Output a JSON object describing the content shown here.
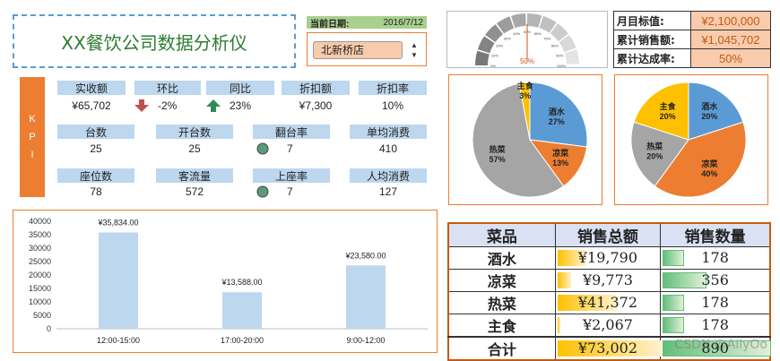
{
  "title": "XX餐饮公司数据分析仪",
  "date": {
    "label": "当前日期:",
    "value": "2016/7/12"
  },
  "store": {
    "selected": "北新桥店"
  },
  "gauge": {
    "value_label": "50%",
    "value": 0.5,
    "ticks": [
      "0%",
      "10%",
      "20%",
      "30%",
      "40%",
      "50%",
      "60%",
      "70%",
      "80%",
      "90%",
      "100%"
    ]
  },
  "targets": [
    {
      "label": "月目标值:",
      "value": "¥2,100,000"
    },
    {
      "label": "累计销售额:",
      "value": "¥1,045,702"
    },
    {
      "label": "累计达成率:",
      "value": "50%"
    }
  ],
  "kpi": {
    "side_label": [
      "K",
      "P",
      "I"
    ],
    "headers": {
      "revenue": "实收额",
      "mom": "环比",
      "yoy": "同比",
      "discount_amount": "折扣额",
      "discount_rate": "折扣率",
      "tables": "台数",
      "open_tables": "开台数",
      "turnover": "翻台率",
      "avg_per_table": "单均消费",
      "seats": "座位数",
      "customers": "客流量",
      "seat_rate": "上座率",
      "avg_per_person": "人均消费"
    },
    "values": {
      "revenue": "¥65,702",
      "mom": "-2%",
      "yoy": "23%",
      "discount_amount": "¥7,300",
      "discount_rate": "10%",
      "tables": "25",
      "open_tables": "25",
      "turnover": "7",
      "avg_per_table": "410",
      "seats": "78",
      "customers": "572",
      "seat_rate": "7",
      "avg_per_person": "127"
    },
    "colors": {
      "down_arrow": "#c0504d",
      "up_arrow": "#2e8b57",
      "circle": "#5b9a7a"
    }
  },
  "chart_data": [
    {
      "type": "bar",
      "categories": [
        "12:00-15:00",
        "17:00-20:00",
        "9:00-12:00"
      ],
      "values": [
        35834,
        13588,
        23580
      ],
      "data_labels": [
        "¥35,834.00",
        "¥13,588.00",
        "¥23,580.00"
      ],
      "ylim": [
        0,
        40000
      ],
      "yticks": [
        0,
        5000,
        10000,
        15000,
        20000,
        25000,
        30000,
        35000,
        40000
      ],
      "color": "#bdd7ee"
    },
    {
      "type": "pie",
      "labels": [
        "酒水",
        "凉菜",
        "热菜",
        "主食"
      ],
      "values": [
        27,
        13,
        57,
        3
      ],
      "value_labels": [
        "27%",
        "13%",
        "57%",
        "3%"
      ],
      "colors": [
        "#5b9bd5",
        "#ed7d31",
        "#a5a5a5",
        "#ffc000"
      ]
    },
    {
      "type": "pie",
      "labels": [
        "酒水",
        "凉菜",
        "热菜",
        "主食"
      ],
      "values": [
        20,
        40,
        20,
        20
      ],
      "value_labels": [
        "20%",
        "40%",
        "20%",
        "20%"
      ],
      "colors": [
        "#5b9bd5",
        "#ed7d31",
        "#a5a5a5",
        "#ffc000"
      ]
    }
  ],
  "sales": {
    "headers": [
      "菜品",
      "销售总额",
      "销售数量"
    ],
    "rows": [
      {
        "name": "酒水",
        "amount": "¥19,790",
        "amount_value": 19790,
        "qty": "178",
        "qty_value": 178
      },
      {
        "name": "凉菜",
        "amount": "¥9,773",
        "amount_value": 9773,
        "qty": "356",
        "qty_value": 356
      },
      {
        "name": "热菜",
        "amount": "¥41,372",
        "amount_value": 41372,
        "qty": "178",
        "qty_value": 178
      },
      {
        "name": "主食",
        "amount": "¥2,067",
        "amount_value": 2067,
        "qty": "178",
        "qty_value": 178
      }
    ],
    "total": {
      "name": "合计",
      "amount": "¥73,002",
      "amount_value": 73002,
      "qty": "890",
      "qty_value": 890
    }
  },
  "watermark": "CSDN @AilyOo"
}
